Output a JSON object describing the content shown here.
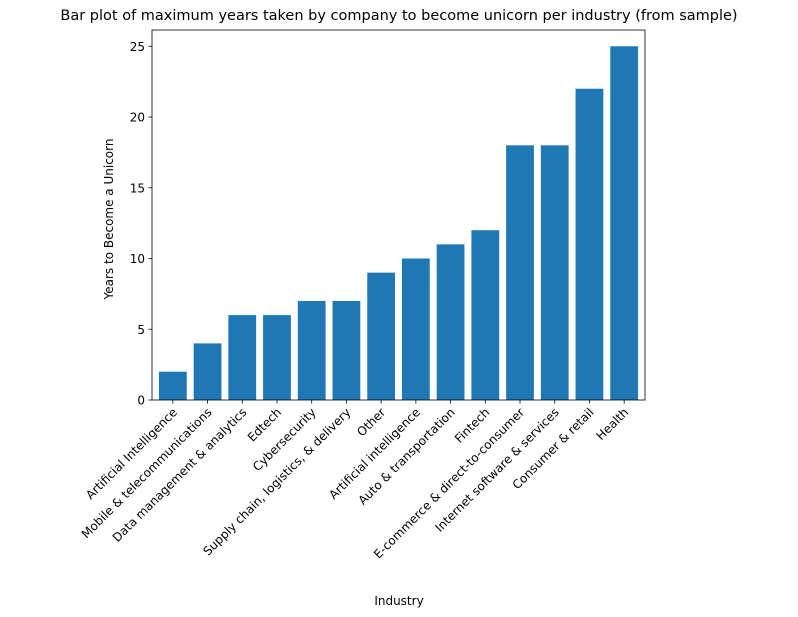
{
  "chart_data": {
    "type": "bar",
    "title": "Bar plot of maximum years taken by company to become unicorn per industry (from sample)",
    "xlabel": "Industry",
    "ylabel": "Years to Become a Unicorn",
    "categories": [
      "Artificial Intelligence",
      "Mobile & telecommunications",
      "Data management & analytics",
      "Edtech",
      "Cybersecurity",
      "Supply chain, logistics, & delivery",
      "Other",
      "Artificial intelligence",
      "Auto & transportation",
      "Fintech",
      "E-commerce & direct-to-consumer",
      "Internet software & services",
      "Consumer & retail",
      "Health"
    ],
    "values": [
      2,
      4,
      6,
      6,
      7,
      7,
      9,
      10,
      11,
      12,
      18,
      18,
      22,
      25
    ],
    "ylim": [
      0,
      26.15
    ],
    "yticks": [
      0,
      5,
      10,
      15,
      20,
      25
    ],
    "bar_color": "#1f77b4",
    "grid": false,
    "legend": "none"
  }
}
